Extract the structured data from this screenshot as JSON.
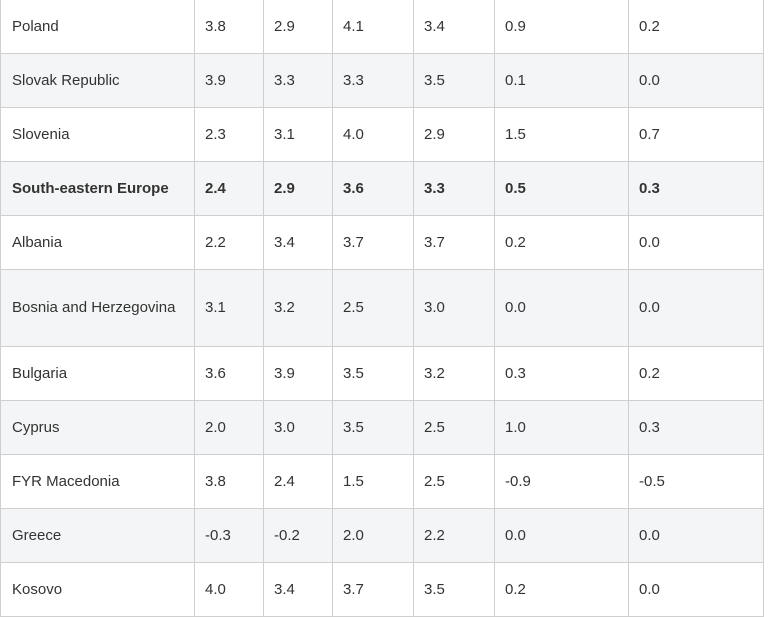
{
  "table": {
    "rows": [
      {
        "name": "Poland",
        "v1": "3.8",
        "v2": "2.9",
        "v3": "4.1",
        "v4": "3.4",
        "v5": "0.9",
        "v6": "0.2"
      },
      {
        "name": "Slovak Republic",
        "v1": "3.9",
        "v2": "3.3",
        "v3": "3.3",
        "v4": "3.5",
        "v5": "0.1",
        "v6": "0.0"
      },
      {
        "name": "Slovenia",
        "v1": "2.3",
        "v2": "3.1",
        "v3": "4.0",
        "v4": "2.9",
        "v5": "1.5",
        "v6": "0.7"
      },
      {
        "name": "South-eastern Europe",
        "v1": "2.4",
        "v2": "2.9",
        "v3": "3.6",
        "v4": "3.3",
        "v5": "0.5",
        "v6": "0.3"
      },
      {
        "name": "Albania",
        "v1": "2.2",
        "v2": "3.4",
        "v3": "3.7",
        "v4": "3.7",
        "v5": "0.2",
        "v6": "0.0"
      },
      {
        "name": "Bosnia and Herzegovina",
        "v1": "3.1",
        "v2": "3.2",
        "v3": "2.5",
        "v4": "3.0",
        "v5": "0.0",
        "v6": "0.0"
      },
      {
        "name": "Bulgaria",
        "v1": "3.6",
        "v2": "3.9",
        "v3": "3.5",
        "v4": "3.2",
        "v5": "0.3",
        "v6": "0.2"
      },
      {
        "name": "Cyprus",
        "v1": "2.0",
        "v2": "3.0",
        "v3": "3.5",
        "v4": "2.5",
        "v5": "1.0",
        "v6": "0.3"
      },
      {
        "name": "FYR Macedonia",
        "v1": "3.8",
        "v2": "2.4",
        "v3": "1.5",
        "v4": "2.5",
        "v5": "-0.9",
        "v6": "-0.5"
      },
      {
        "name": "Greece",
        "v1": "-0.3",
        "v2": "-0.2",
        "v3": "2.0",
        "v4": "2.2",
        "v5": "0.0",
        "v6": "0.0"
      },
      {
        "name": "Kosovo",
        "v1": "4.0",
        "v2": "3.4",
        "v3": "3.7",
        "v4": "3.5",
        "v5": "0.2",
        "v6": "0.0"
      }
    ]
  }
}
